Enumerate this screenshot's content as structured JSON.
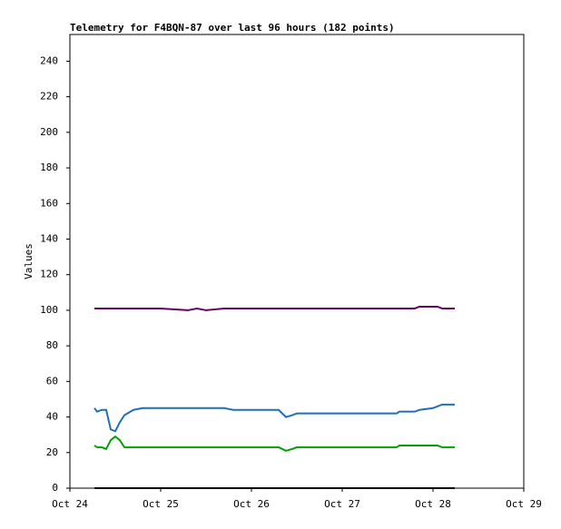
{
  "chart_data": {
    "type": "line",
    "title": "Telemetry for F4BQN-87 over last 96 hours (182 points)",
    "y_label": "Values",
    "x": [
      0.27,
      0.3,
      0.35,
      0.4,
      0.45,
      0.5,
      0.55,
      0.6,
      0.7,
      0.8,
      1.0,
      1.3,
      1.4,
      1.5,
      1.7,
      1.8,
      2.3,
      2.38,
      2.45,
      2.5,
      3.0,
      3.6,
      3.63,
      3.8,
      3.85,
      4.0,
      4.05,
      4.1,
      4.15,
      4.24
    ],
    "series": [
      {
        "color": "#660066",
        "values": [
          101,
          101,
          101,
          101,
          101,
          101,
          101,
          101,
          101,
          101,
          101,
          100,
          101,
          100,
          101,
          101,
          101,
          101,
          101,
          101,
          101,
          101,
          101,
          101,
          102,
          102,
          102,
          101,
          101,
          101
        ]
      },
      {
        "color": "#1e6fbd",
        "values": [
          45,
          43,
          44,
          44,
          33,
          32,
          37,
          41,
          44,
          45,
          45,
          45,
          45,
          45,
          45,
          44,
          44,
          40,
          41,
          42,
          42,
          42,
          43,
          43,
          44,
          45,
          46,
          47,
          47,
          47
        ]
      },
      {
        "color": "#00a000",
        "values": [
          24,
          23,
          23,
          22,
          27,
          29,
          27,
          23,
          23,
          23,
          23,
          23,
          23,
          23,
          23,
          23,
          23,
          21,
          22,
          23,
          23,
          23,
          24,
          24,
          24,
          24,
          24,
          23,
          23,
          23
        ]
      },
      {
        "color": "#000000",
        "values": [
          0,
          0,
          0,
          0,
          0,
          0,
          0,
          0,
          0,
          0,
          0,
          0,
          0,
          0,
          0,
          0,
          0,
          0,
          0,
          0,
          0,
          0,
          0,
          0,
          0,
          0,
          0,
          0,
          0,
          0
        ]
      }
    ],
    "xlim": [
      0,
      5
    ],
    "xticks": [
      {
        "value": 0,
        "label": "Oct 24"
      },
      {
        "value": 1,
        "label": "Oct 25"
      },
      {
        "value": 2,
        "label": "Oct 26"
      },
      {
        "value": 3,
        "label": "Oct 27"
      },
      {
        "value": 4,
        "label": "Oct 28"
      },
      {
        "value": 5,
        "label": "Oct 29"
      }
    ],
    "ylim": [
      0,
      255
    ],
    "yticks": [
      0,
      20,
      40,
      60,
      80,
      100,
      120,
      140,
      160,
      180,
      200,
      220,
      240
    ],
    "grid": false
  }
}
